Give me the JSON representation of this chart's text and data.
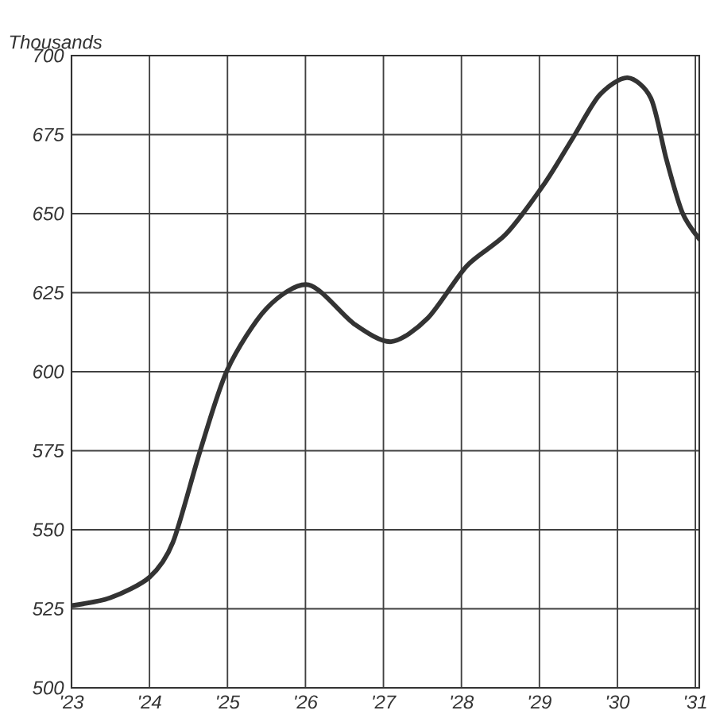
{
  "chart_data": {
    "type": "line",
    "ylabel": "Thousands",
    "x": [
      23,
      23.5,
      24,
      24.3,
      24.65,
      25,
      25.5,
      26.04,
      26.63,
      27.1,
      27.57,
      28.07,
      28.57,
      29.07,
      29.43,
      29.77,
      30.13,
      30.43,
      30.63,
      30.83,
      31.05
    ],
    "series": [
      {
        "color": "#333333",
        "values": [
          526,
          528.5,
          535,
          546,
          575,
          600.7,
          620,
          627.5,
          615,
          609.5,
          617,
          633.5,
          643.5,
          659.7,
          674,
          687.5,
          693,
          686.5,
          667,
          650.5,
          642
        ]
      }
    ],
    "xlim": [
      23,
      31.05
    ],
    "ylim": [
      500,
      700
    ],
    "xticks": [
      {
        "value": 23,
        "label": "'23"
      },
      {
        "value": 24,
        "label": "'24"
      },
      {
        "value": 25,
        "label": "'25"
      },
      {
        "value": 26,
        "label": "'26"
      },
      {
        "value": 27,
        "label": "'27"
      },
      {
        "value": 28,
        "label": "'28"
      },
      {
        "value": 29,
        "label": "'29"
      },
      {
        "value": 30,
        "label": "'30"
      },
      {
        "value": 31,
        "label": "'31"
      }
    ],
    "yticks": [
      500,
      525,
      550,
      575,
      600,
      625,
      650,
      675,
      700
    ],
    "grid": true,
    "line_style": "solid",
    "marker": "none"
  }
}
